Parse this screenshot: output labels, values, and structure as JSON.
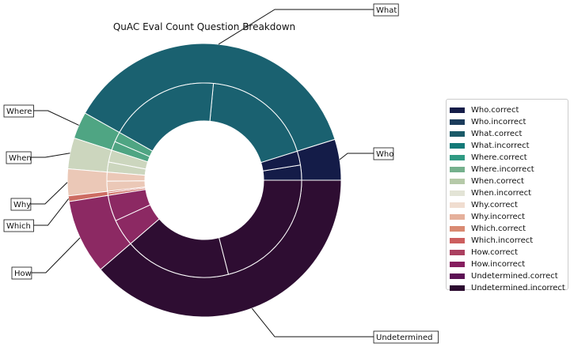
{
  "chart_data": {
    "type": "pie",
    "title": "QuAC Eval Count Question Breakdown",
    "outer_ring": {
      "categories": [
        "Who",
        "What",
        "Where",
        "When",
        "Why",
        "Which",
        "How",
        "Undetermined"
      ],
      "values": [
        145,
        1110,
        95,
        110,
        95,
        20,
        265,
        1160
      ],
      "colors": [
        "#141c48",
        "#1a6170",
        "#4fa583",
        "#ccd6be",
        "#ebc8b7",
        "#cd6c62",
        "#8c2963",
        "#2e0d32"
      ]
    },
    "inner_ring": {
      "categories": [
        "Who.correct",
        "Who.incorrect",
        "What.correct",
        "What.incorrect",
        "Where.correct",
        "Where.incorrect",
        "When.correct",
        "When.incorrect",
        "Why.correct",
        "Why.incorrect",
        "Which.correct",
        "Which.incorrect",
        "How.correct",
        "How.incorrect",
        "Undetermined.correct",
        "Undetermined.incorrect"
      ],
      "values": [
        75,
        70,
        560,
        550,
        50,
        45,
        60,
        50,
        45,
        50,
        8,
        12,
        130,
        135,
        530,
        630
      ]
    },
    "legend": [
      {
        "label": "Who.correct",
        "color": "#141c48"
      },
      {
        "label": "Who.incorrect",
        "color": "#1b3c5b"
      },
      {
        "label": "What.correct",
        "color": "#1a5a68"
      },
      {
        "label": "What.incorrect",
        "color": "#137a78"
      },
      {
        "label": "Where.correct",
        "color": "#2f9a83"
      },
      {
        "label": "Where.incorrect",
        "color": "#75b08d"
      },
      {
        "label": "When.correct",
        "color": "#b5c9a8"
      },
      {
        "label": "When.incorrect",
        "color": "#e3e4d6"
      },
      {
        "label": "Why.correct",
        "color": "#f0ddd0"
      },
      {
        "label": "Why.incorrect",
        "color": "#e5b09b"
      },
      {
        "label": "Which.correct",
        "color": "#d98a72"
      },
      {
        "label": "Which.incorrect",
        "color": "#cc5e5e"
      },
      {
        "label": "How.correct",
        "color": "#ab4060"
      },
      {
        "label": "How.incorrect",
        "color": "#861e5f"
      },
      {
        "label": "Undetermined.correct",
        "color": "#5c1254"
      },
      {
        "label": "Undetermined.incorrect",
        "color": "#2c0c30"
      }
    ],
    "annotations": [
      "What",
      "Who",
      "Where",
      "When",
      "Why",
      "Which",
      "How",
      "Undetermined"
    ],
    "legend_position": "center-right"
  }
}
